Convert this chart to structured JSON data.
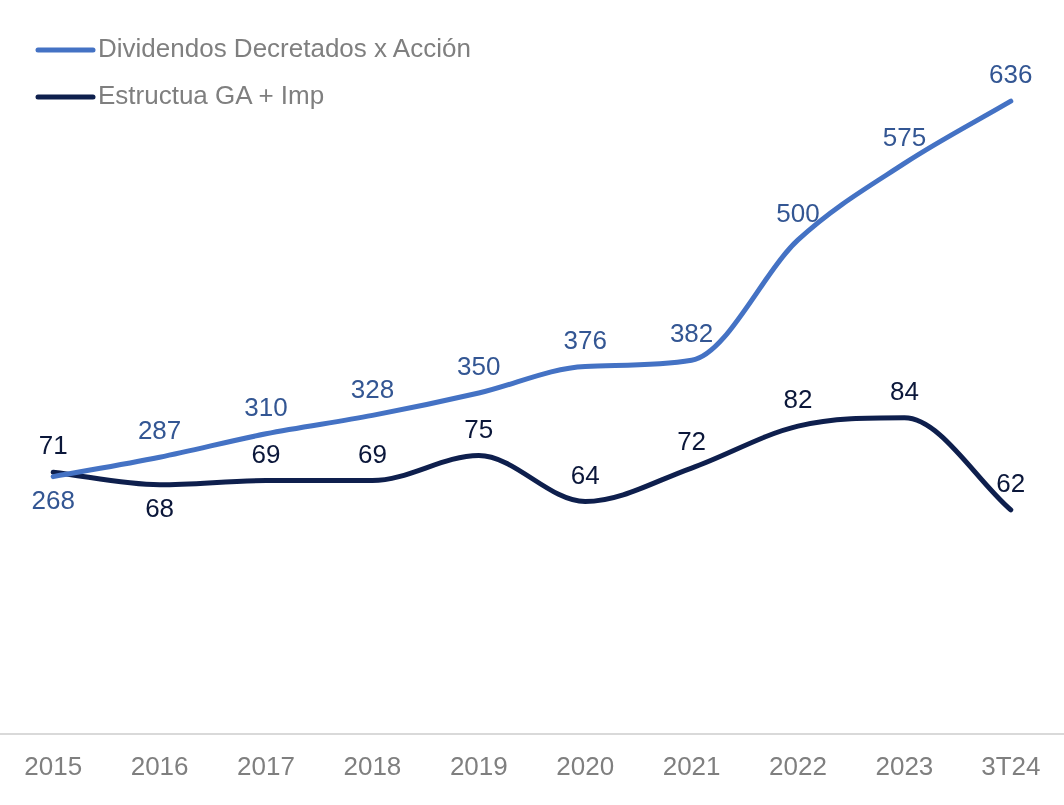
{
  "chart_data": {
    "type": "line",
    "categories": [
      "2015",
      "2016",
      "2017",
      "2018",
      "2019",
      "2020",
      "2021",
      "2022",
      "2023",
      "3T24"
    ],
    "series": [
      {
        "name": "Dividendos Decretados x Acción",
        "color": "#4472c4",
        "values": [
          268,
          287,
          310,
          328,
          350,
          376,
          382,
          500,
          575,
          636
        ]
      },
      {
        "name": "Estructua GA + Imp",
        "color": "#0e1f4d",
        "axis": "y2",
        "values": [
          71,
          68,
          69,
          69,
          75,
          64,
          72,
          82,
          84,
          62
        ]
      }
    ],
    "data_labels": true,
    "grid": false,
    "legend": "top left",
    "tick_labels": "x",
    "marker": "none",
    "line_style": "solid"
  }
}
